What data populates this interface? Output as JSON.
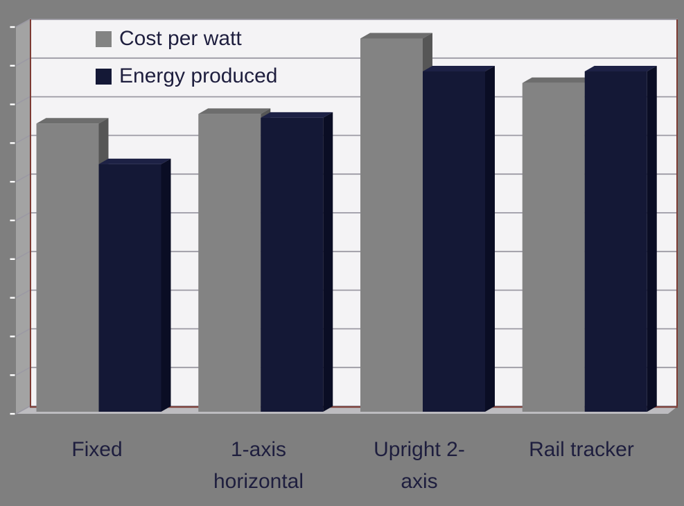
{
  "chart_data": {
    "type": "bar",
    "projection": "3d-clustered",
    "title": "",
    "xlabel": "",
    "ylabel": "",
    "categories": [
      "Fixed",
      "1-axis horizontal",
      "Upright 2-axis",
      "Rail tracker"
    ],
    "categories_display": [
      [
        "Fixed"
      ],
      [
        "1-axis",
        "horizontal"
      ],
      [
        "Upright 2-",
        "axis"
      ],
      [
        "Rail tracker"
      ]
    ],
    "series": [
      {
        "name": "Cost per watt",
        "values": [
          7.45,
          7.7,
          9.65,
          8.5
        ],
        "color": "#838383",
        "color_top": "#6d6d6d",
        "color_side": "#565656"
      },
      {
        "name": "Energy produced",
        "values": [
          6.4,
          7.6,
          8.8,
          8.8
        ],
        "color": "#141836",
        "color_top": "#1d2145",
        "color_side": "#0a0d24"
      }
    ],
    "value_axis": {
      "labels_visible": false,
      "ylim": [
        0,
        10
      ],
      "gridline_count": 11,
      "tick_marks": 11
    },
    "grid": true,
    "legend_position": "top-left inside plot"
  },
  "colors": {
    "outer_background": "#7f7f7f",
    "plot_background": "#f4f3f5",
    "left_wall": "#a3a3a3",
    "floor": "#bdbcc0",
    "gridline": "#9b99a3",
    "axis_line": "#7d3a32",
    "tick": "#ffffff",
    "label_text": "#1e1e3e"
  }
}
